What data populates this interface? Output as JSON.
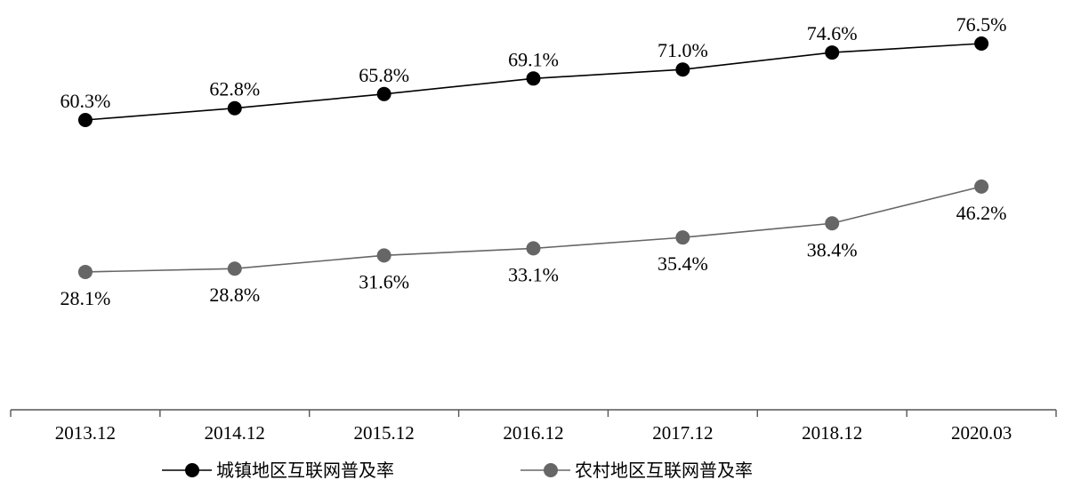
{
  "chart_data": {
    "type": "line",
    "title": "",
    "xlabel": "",
    "ylabel": "",
    "categories": [
      "2013.12",
      "2014.12",
      "2015.12",
      "2016.12",
      "2017.12",
      "2018.12",
      "2020.03"
    ],
    "ylim": [
      0,
      100
    ],
    "grid": false,
    "legend_position": "bottom",
    "series": [
      {
        "name": "城镇地区互联网普及率",
        "values": [
          60.3,
          62.8,
          65.8,
          69.1,
          71.0,
          74.6,
          76.5
        ],
        "labels": [
          "60.3%",
          "62.8%",
          "65.8%",
          "69.1%",
          "71.0%",
          "74.6%",
          "76.5%"
        ],
        "label_position": "above",
        "color": "#000000"
      },
      {
        "name": "农村地区互联网普及率",
        "values": [
          28.1,
          28.8,
          31.6,
          33.1,
          35.4,
          38.4,
          46.2
        ],
        "labels": [
          "28.1%",
          "28.8%",
          "31.6%",
          "33.1%",
          "35.4%",
          "38.4%",
          "46.2%"
        ],
        "label_position": "below",
        "color": "#666666"
      }
    ]
  }
}
